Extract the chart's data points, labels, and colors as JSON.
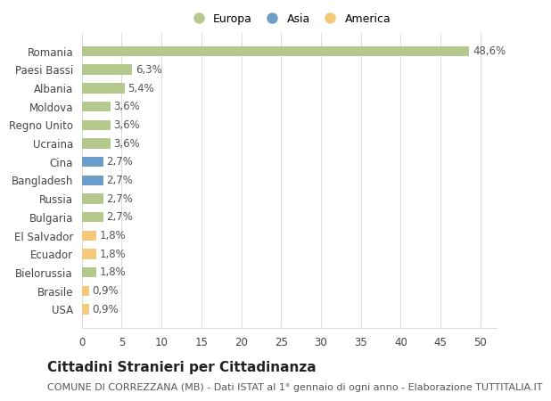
{
  "categories": [
    "USA",
    "Brasile",
    "Bielorussia",
    "Ecuador",
    "El Salvador",
    "Bulgaria",
    "Russia",
    "Bangladesh",
    "Cina",
    "Ucraina",
    "Regno Unito",
    "Moldova",
    "Albania",
    "Paesi Bassi",
    "Romania"
  ],
  "values": [
    0.9,
    0.9,
    1.8,
    1.8,
    1.8,
    2.7,
    2.7,
    2.7,
    2.7,
    3.6,
    3.6,
    3.6,
    5.4,
    6.3,
    48.6
  ],
  "labels": [
    "0,9%",
    "0,9%",
    "1,8%",
    "1,8%",
    "1,8%",
    "2,7%",
    "2,7%",
    "2,7%",
    "2,7%",
    "3,6%",
    "3,6%",
    "3,6%",
    "5,4%",
    "6,3%",
    "48,6%"
  ],
  "colors": [
    "#f5c97a",
    "#f5c97a",
    "#b5c98e",
    "#f5c97a",
    "#f5c97a",
    "#b5c98e",
    "#b5c98e",
    "#6b9fc9",
    "#6b9fc9",
    "#b5c98e",
    "#b5c98e",
    "#b5c98e",
    "#b5c98e",
    "#b5c98e",
    "#b5c98e"
  ],
  "legend_labels": [
    "Europa",
    "Asia",
    "America"
  ],
  "legend_colors": [
    "#b5c98e",
    "#6b9fc9",
    "#f5c97a"
  ],
  "title": "Cittadini Stranieri per Cittadinanza",
  "subtitle": "COMUNE DI CORREZZANA (MB) - Dati ISTAT al 1° gennaio di ogni anno - Elaborazione TUTTITALIA.IT",
  "xlim": [
    0,
    52
  ],
  "xticks": [
    0,
    5,
    10,
    15,
    20,
    25,
    30,
    35,
    40,
    45,
    50
  ],
  "background_color": "#ffffff",
  "grid_color": "#dddddd",
  "bar_height": 0.55,
  "title_fontsize": 11,
  "subtitle_fontsize": 8,
  "label_fontsize": 8.5,
  "tick_fontsize": 8.5,
  "legend_fontsize": 9
}
